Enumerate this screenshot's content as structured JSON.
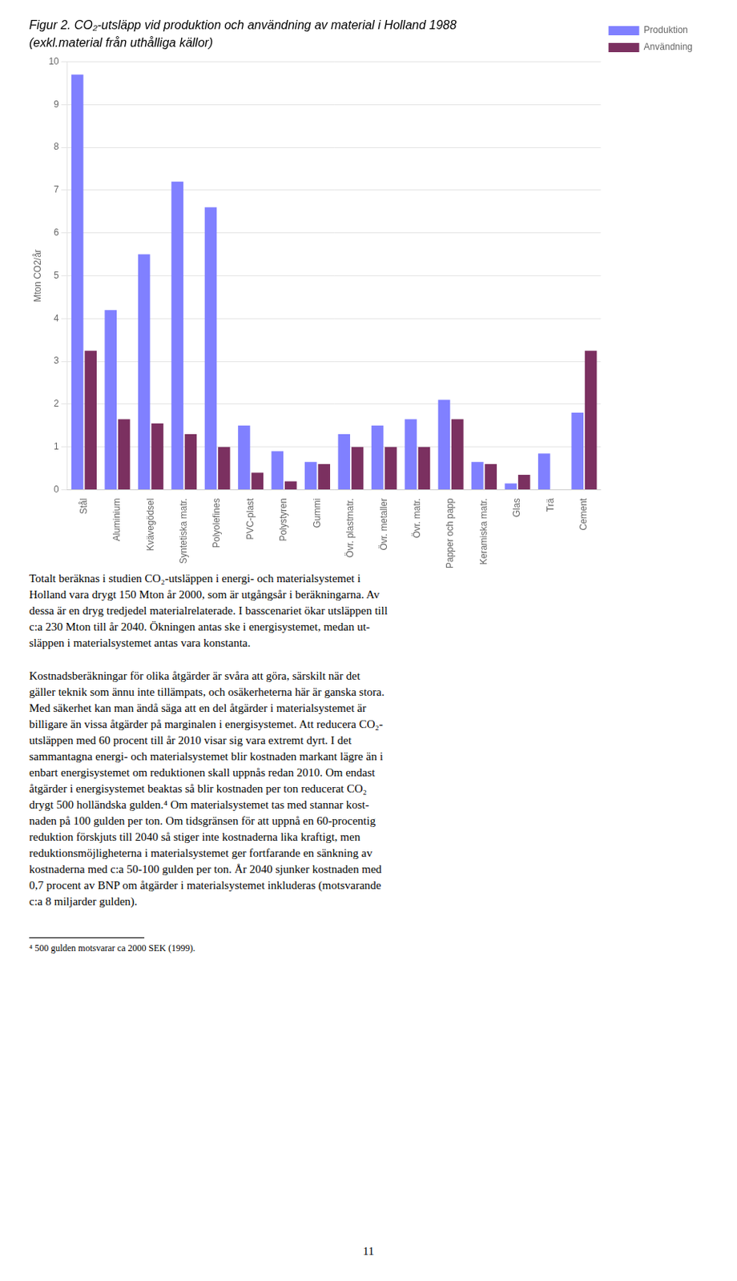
{
  "chart_data": {
    "type": "bar",
    "title": "Figur 2. CO₂-utsläpp vid produktion och användning av material i Holland 1988",
    "subtitle": "(exkl.material från uthålliga källor)",
    "y_label": "Mton CO2/år",
    "categories": [
      "Stål",
      "Aluminium",
      "Kvävegödsel",
      "Syntetiska matr.",
      "Polyolefines",
      "PVC-plast",
      "Polystyren",
      "Gummi",
      "Övr. plastmatr.",
      "Övr. metaller",
      "Övr. matr.",
      "Papper och papp",
      "Keramiska matr.",
      "Glas",
      "Trä",
      "Cement"
    ],
    "series": [
      {
        "name": "Produktion",
        "color": "#8080ff",
        "values": [
          9.7,
          4.2,
          5.5,
          7.2,
          6.6,
          1.5,
          0.9,
          0.65,
          1.3,
          1.5,
          1.65,
          2.1,
          0.65,
          0.15,
          0.85,
          1.8
        ]
      },
      {
        "name": "Användning",
        "color": "#7b3060",
        "values": [
          3.25,
          1.65,
          1.55,
          1.3,
          1.0,
          0.4,
          0.2,
          0.6,
          1.0,
          1.0,
          1.0,
          1.65,
          0.6,
          0.35,
          0.0,
          3.25
        ]
      }
    ],
    "ylim": [
      0,
      10
    ],
    "yticks": [
      0,
      1,
      2,
      3,
      4,
      5,
      6,
      7,
      8,
      9,
      10
    ],
    "grid": true,
    "legend": "right"
  },
  "paragraphs": [
    "Totalt beräknas i studien CO₂-utsläppen i energi- och materialsystemet i\nHolland vara drygt 150 Mton år 2000, som är utgångsår i beräkningarna. Av\ndessa är en dryg tredjedel materialrelaterade. I basscenariet ökar utsläppen till\nc:a 230 Mton till år 2040. Ökningen antas ske i energisystemet, medan ut-\nsläppen i materialsystemet antas vara konstanta.",
    "Kostnadsberäkningar för olika åtgärder är svåra att göra, särskilt när det\ngäller teknik som ännu inte tillämpats, och osäkerheterna här är ganska stora.\nMed säkerhet kan man ändå säga att en del åtgärder i materialsystemet är\nbilligare än vissa åtgärder på marginalen i energisystemet. Att reducera CO₂-\nutsläppen med 60 procent till år 2010 visar sig vara extremt dyrt. I det\nsammantagna energi- och materialsystemet blir kostnaden markant lägre än i\nenbart energisystemet om reduktionen skall uppnås redan 2010. Om endast\nåtgärder i energisystemet beaktas så blir kostnaden per ton reducerat CO₂\ndrygt 500 holländska gulden.⁴ Om materialsystemet tas med stannar kost-\nnaden på 100 gulden per ton. Om tidsgränsen för att uppnå en 60-procentig\nreduktion förskjuts till 2040 så stiger inte kostnaderna lika kraftigt, men\nreduktionsmöjligheterna i materialsystemet ger fortfarande en sänkning av\nkostnaderna med c:a 50-100 gulden per ton. År 2040 sjunker kostnaden med\n0,7 procent av BNP om åtgärder i materialsystemet inkluderas (motsvarande\nc:a 8 miljarder gulden)."
  ],
  "footnote": "⁴ 500 gulden motsvarar ca 2000 SEK (1999).",
  "page_number": "11"
}
